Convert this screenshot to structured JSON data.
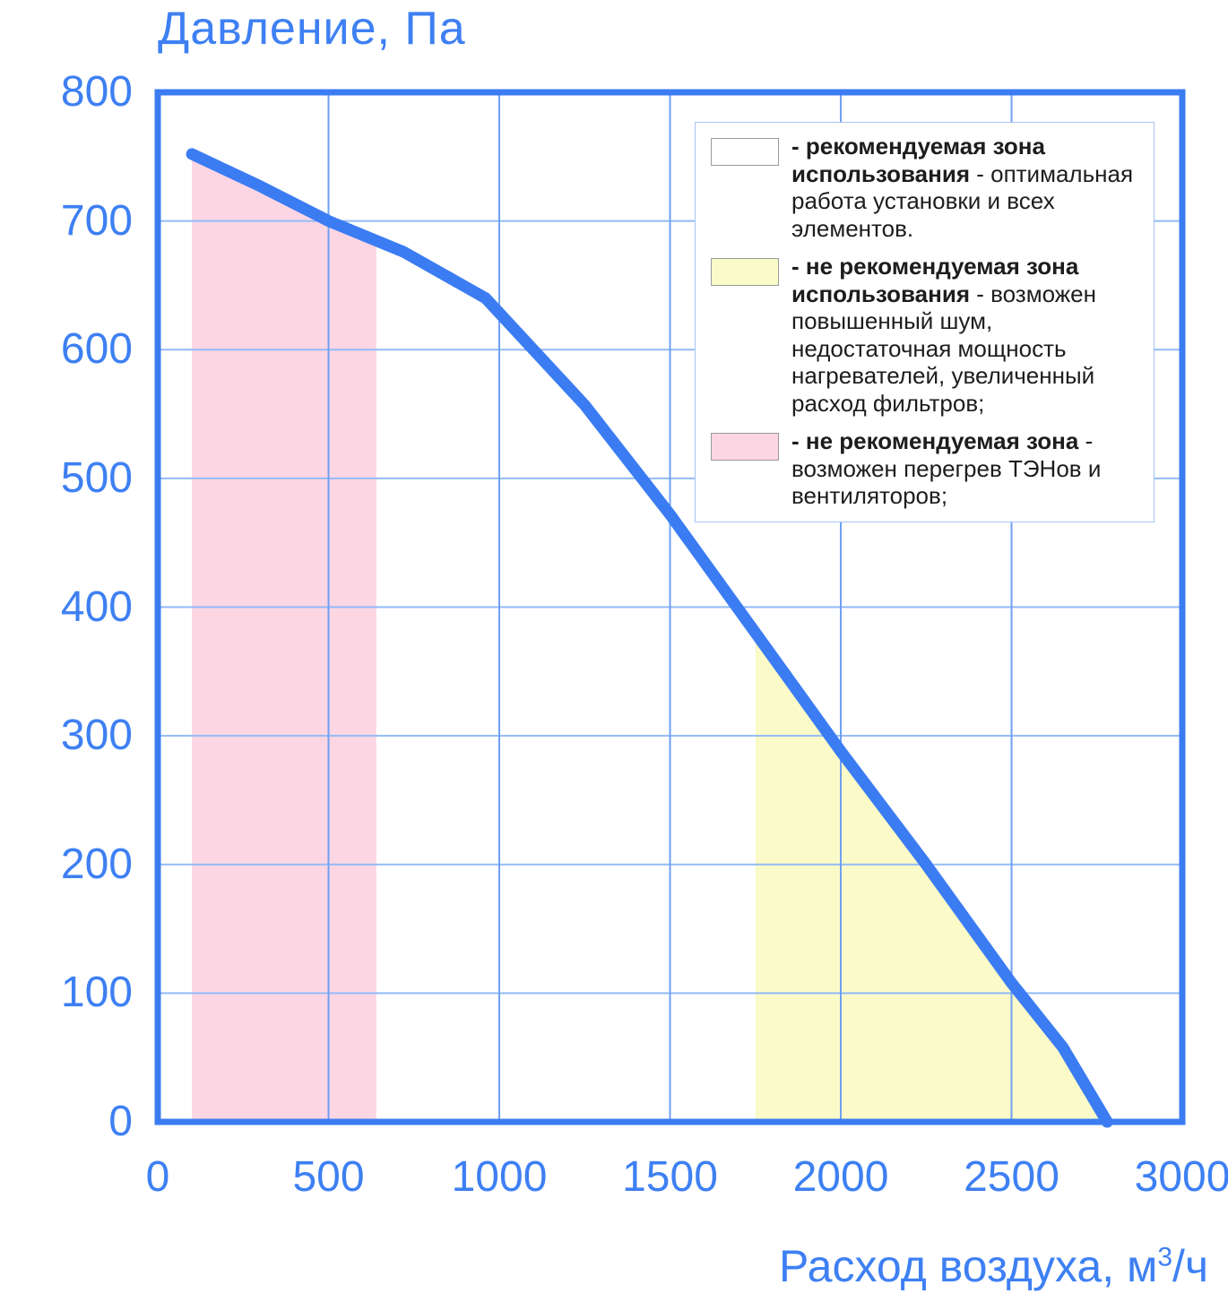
{
  "colors": {
    "curve_blue": "#3B7CF2",
    "text_blue": "#3E80F3",
    "border_blue": "#3B7CF2",
    "grid_vertical": "#6FA0F3",
    "grid_horizontal": "#92BAF7",
    "legend_border": "#A6C6F1",
    "swatch_border": "#9A9A9A",
    "pink_zone": "#FDD6E4",
    "yellow_zone": "#FAFBC8",
    "background": "#FFFFFF"
  },
  "chart_data": {
    "type": "line",
    "title": "Давление, Па",
    "ylabel": "Давление, Па",
    "xlabel": "Расход воздуха, м³/ч",
    "xlabel_parts": {
      "main": "Расход воздуха, м",
      "sup": "3",
      "rest": "/ч"
    },
    "xlim": [
      0,
      3000
    ],
    "ylim": [
      0,
      800
    ],
    "x_ticks": [
      0,
      500,
      1000,
      1500,
      2000,
      2500,
      3000
    ],
    "y_ticks": [
      800,
      700,
      600,
      500,
      400,
      300,
      200,
      100,
      0
    ],
    "grid": {
      "x_step": 500,
      "y_step": 100,
      "grid_on": true
    },
    "legend_position": "top-right",
    "series": [
      {
        "name": "fan-performance-curve",
        "color": "#3B7CF2",
        "points": [
          [
            100,
            752
          ],
          [
            300,
            727
          ],
          [
            500,
            700
          ],
          [
            720,
            676
          ],
          [
            960,
            640
          ],
          [
            1250,
            557
          ],
          [
            1500,
            472
          ],
          [
            1750,
            380
          ],
          [
            2000,
            288
          ],
          [
            2250,
            200
          ],
          [
            2500,
            108
          ],
          [
            2650,
            58
          ],
          [
            2780,
            0
          ]
        ]
      }
    ],
    "zones": [
      {
        "name": "overheat-zone",
        "color": "#FDD6E4",
        "x_start": 100,
        "x_end": 640
      },
      {
        "name": "noise-zone",
        "color": "#FAFBC8",
        "x_start": 1750,
        "x_end": 2780
      }
    ]
  },
  "legend": {
    "entries": [
      {
        "swatch_color": "#FFFFFF",
        "bold": "- рекомендуемая зона использования",
        "rest": " - оптимальная работа установки и всех элементов."
      },
      {
        "swatch_color": "#FAFBC8",
        "bold": "- не рекомендуемая зона использования",
        "rest": " - возможен повышенный шум, недостаточная мощность нагревателей, увеличенный расход фильтров;"
      },
      {
        "swatch_color": "#FDD6E4",
        "bold": "- не рекомендуемая зона",
        "rest": " - возможен перегрев ТЭНов и вентиляторов;"
      }
    ]
  }
}
